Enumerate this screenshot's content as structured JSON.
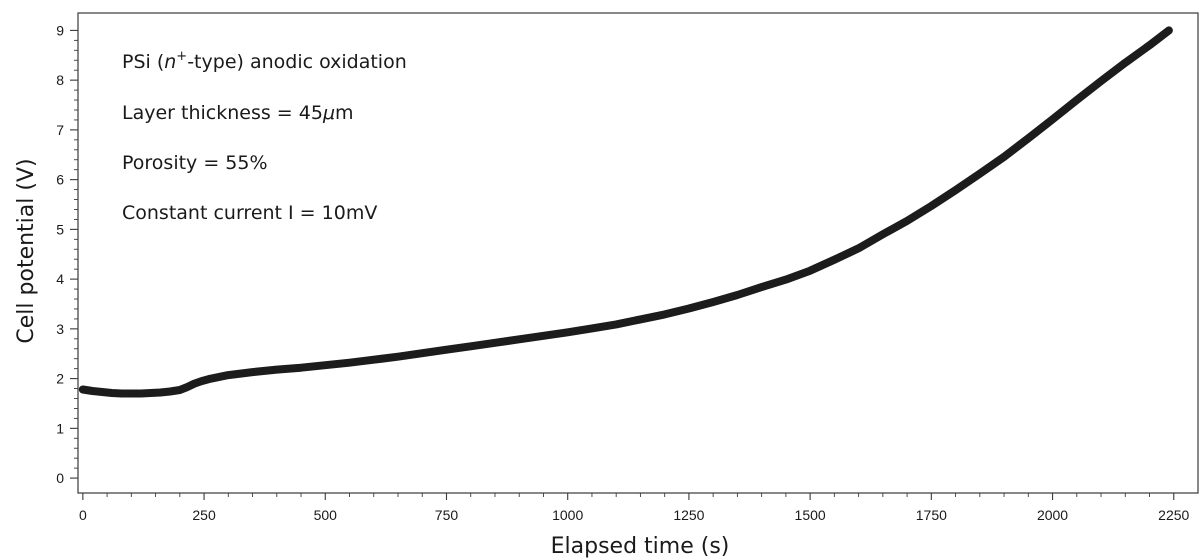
{
  "chart_data": {
    "type": "line",
    "xlabel": "Elapsed time (s)",
    "ylabel": "Cell potential (V)",
    "xlim": [
      -10,
      2300
    ],
    "ylim": [
      -0.3,
      9.35
    ],
    "x_ticks": [
      0,
      250,
      500,
      750,
      1000,
      1250,
      1500,
      1750,
      2000,
      2250
    ],
    "y_ticks": [
      0,
      1,
      2,
      3,
      4,
      5,
      6,
      7,
      8,
      9
    ],
    "grid": false,
    "series_color": "#1c1c1c",
    "annotations": [
      {
        "parts": [
          [
            "PSi (",
            "normal"
          ],
          [
            "n",
            "italic"
          ],
          [
            "+",
            "sup"
          ],
          [
            "-type) anodic oxidation",
            "normal"
          ]
        ]
      },
      {
        "parts": [
          [
            "Layer thickness = 45",
            "normal"
          ],
          [
            "μ",
            "italic"
          ],
          [
            "m",
            "normal"
          ]
        ]
      },
      {
        "parts": [
          [
            "Porosity = 55%",
            "normal"
          ]
        ]
      },
      {
        "parts": [
          [
            "Constant current I = 10mV",
            "normal"
          ]
        ]
      }
    ],
    "series": [
      {
        "x": [
          0,
          20,
          40,
          60,
          80,
          100,
          120,
          140,
          160,
          180,
          200,
          215,
          230,
          245,
          260,
          280,
          300,
          350,
          400,
          450,
          500,
          550,
          600,
          650,
          700,
          750,
          800,
          850,
          900,
          950,
          1000,
          1050,
          1100,
          1150,
          1200,
          1250,
          1300,
          1350,
          1400,
          1450,
          1500,
          1550,
          1600,
          1650,
          1700,
          1750,
          1800,
          1850,
          1900,
          1950,
          2000,
          2050,
          2100,
          2150,
          2200,
          2240
        ],
        "y": [
          1.78,
          1.75,
          1.73,
          1.71,
          1.7,
          1.7,
          1.7,
          1.71,
          1.72,
          1.74,
          1.77,
          1.83,
          1.9,
          1.95,
          1.99,
          2.03,
          2.07,
          2.13,
          2.18,
          2.22,
          2.27,
          2.32,
          2.38,
          2.44,
          2.51,
          2.58,
          2.65,
          2.72,
          2.79,
          2.86,
          2.93,
          3.01,
          3.09,
          3.19,
          3.29,
          3.41,
          3.54,
          3.68,
          3.84,
          3.99,
          4.17,
          4.39,
          4.62,
          4.9,
          5.17,
          5.47,
          5.79,
          6.12,
          6.46,
          6.83,
          7.21,
          7.6,
          7.98,
          8.35,
          8.7,
          9.0
        ]
      }
    ]
  }
}
